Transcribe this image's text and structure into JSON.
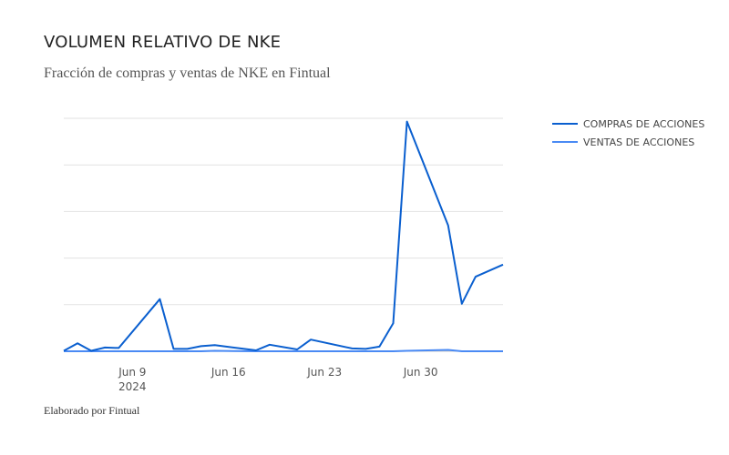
{
  "title": "VOLUMEN RELATIVO DE NKE",
  "subtitle": "Fracción de compras y ventas de NKE en Fintual",
  "footer": "Elaborado por Fintual",
  "chart_data": {
    "type": "line",
    "title": "VOLUMEN RELATIVO DE NKE",
    "subtitle": "Fracción de compras y ventas de NKE en Fintual",
    "xlabel": "",
    "ylabel": "",
    "x_start": "2024-06-04",
    "x": [
      "2024-06-04",
      "2024-06-05",
      "2024-06-06",
      "2024-06-07",
      "2024-06-08",
      "2024-06-11",
      "2024-06-12",
      "2024-06-13",
      "2024-06-14",
      "2024-06-15",
      "2024-06-18",
      "2024-06-19",
      "2024-06-21",
      "2024-06-22",
      "2024-06-25",
      "2024-06-26",
      "2024-06-27",
      "2024-06-28",
      "2024-06-29",
      "2024-07-02",
      "2024-07-03",
      "2024-07-04",
      "2024-07-06"
    ],
    "x_ticks": [
      {
        "date": "2024-06-09",
        "label": "Jun 9",
        "sublabel": "2024"
      },
      {
        "date": "2024-06-16",
        "label": "Jun 16",
        "sublabel": ""
      },
      {
        "date": "2024-06-23",
        "label": "Jun 23",
        "sublabel": ""
      },
      {
        "date": "2024-06-30",
        "label": "Jun 30",
        "sublabel": ""
      }
    ],
    "ylim": [
      0,
      5
    ],
    "y_gridlines": [
      0,
      1,
      2,
      3,
      4,
      5
    ],
    "y_tick_labels_shown": false,
    "grid": true,
    "legend_position": "top-right",
    "series": [
      {
        "name": "COMPRAS DE ACCIONES",
        "color": "#0a5fcf",
        "values": [
          0.01,
          0.17,
          0.01,
          0.08,
          0.07,
          1.12,
          0.05,
          0.05,
          0.11,
          0.13,
          0.02,
          0.14,
          0.04,
          0.25,
          0.06,
          0.05,
          0.1,
          0.6,
          4.93,
          2.7,
          1.02,
          1.6,
          1.86
        ]
      },
      {
        "name": "VENTAS DE ACCIONES",
        "color": "#4a8af4",
        "values": [
          0.0,
          0.0,
          0.0,
          0.0,
          0.0,
          0.0,
          0.0,
          0.0,
          0.0,
          0.01,
          0.0,
          0.0,
          0.0,
          0.0,
          0.0,
          0.0,
          0.0,
          0.0,
          0.01,
          0.03,
          0.0,
          0.0,
          0.0
        ]
      }
    ]
  }
}
